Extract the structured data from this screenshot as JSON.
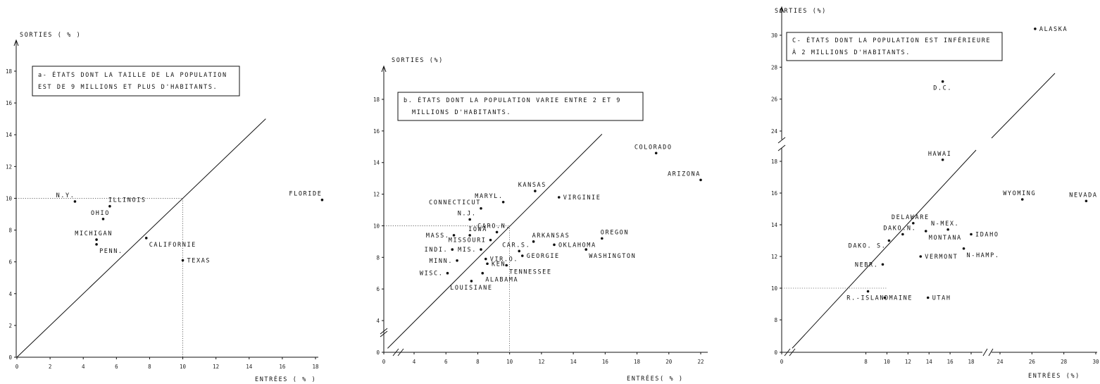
{
  "chart_data": [
    {
      "type": "scatter",
      "panel": "a",
      "title_lines": [
        "a- ÉTATS DONT LA TAILLE DE LA POPULATION",
        "EST DE 9 MILLIONS ET PLUS D'HABITANTS."
      ],
      "xlabel": "ENTRÉES ( % )",
      "ylabel": "SORTIES ( % )",
      "xlim": [
        0,
        18.5
      ],
      "ylim": [
        0,
        19
      ],
      "xticks": [
        0,
        2,
        4,
        6,
        8,
        10,
        12,
        14,
        16,
        18
      ],
      "yticks": [
        0,
        2,
        4,
        6,
        8,
        10,
        12,
        14,
        16,
        18
      ],
      "ytick_labels": [
        "0",
        "2",
        "4",
        "6",
        "8",
        "10",
        "12",
        "14",
        "16",
        "18"
      ],
      "reference_line": {
        "from": [
          0,
          0
        ],
        "to": [
          15,
          15
        ]
      },
      "guides": [
        {
          "x": 10,
          "y": 10
        }
      ],
      "points": [
        {
          "label": "N.Y.",
          "x": 3.5,
          "y": 9.8,
          "anchor": "nw"
        },
        {
          "label": "ILLINOIS",
          "x": 5.6,
          "y": 9.5,
          "anchor": "ne"
        },
        {
          "label": "OHIO",
          "x": 5.2,
          "y": 8.7,
          "anchor": "n"
        },
        {
          "label": "MICHIGAN",
          "x": 4.8,
          "y": 7.4,
          "anchor": "n"
        },
        {
          "label": "PENN.",
          "x": 4.8,
          "y": 7.1,
          "anchor": "se"
        },
        {
          "label": "CALIFORNIE",
          "x": 7.8,
          "y": 7.5,
          "anchor": "se"
        },
        {
          "label": "TEXAS",
          "x": 10.0,
          "y": 6.1,
          "anchor": "e"
        },
        {
          "label": "FLORIDE",
          "x": 18.4,
          "y": 9.9,
          "anchor": "nw"
        }
      ]
    },
    {
      "type": "scatter",
      "panel": "b",
      "title_lines": [
        "b. ÉTATS DONT LA POPULATION VARIE ENTRE 2 ET 9",
        "MILLIONS D'HABITANTS."
      ],
      "xlabel": "ENTRÉES( % )",
      "ylabel": "SORTIES (%)",
      "xlim": [
        0,
        22.5
      ],
      "ylim": [
        0,
        20
      ],
      "xticks": [
        0,
        4,
        6,
        8,
        10,
        12,
        14,
        16,
        18,
        20,
        22
      ],
      "xtick_labels": [
        "0",
        "4",
        "6",
        "8",
        "10",
        "12",
        "14",
        "16",
        "18",
        "20",
        "22"
      ],
      "yticks": [
        0,
        4,
        6,
        8,
        10,
        12,
        14,
        16,
        18
      ],
      "ytick_labels": [
        "0",
        "4",
        "6",
        "8",
        "10",
        "12",
        "14",
        "16",
        "18"
      ],
      "axis_break": true,
      "reference_line": {
        "from": [
          0.5,
          0.5
        ],
        "to": [
          15.8,
          15.8
        ]
      },
      "guides": [
        {
          "x": 10,
          "y": 10
        }
      ],
      "points": [
        {
          "label": "COLORADO",
          "x": 19.2,
          "y": 14.6,
          "anchor": "n"
        },
        {
          "label": "ARIZONA",
          "x": 22.0,
          "y": 12.9,
          "anchor": "nw"
        },
        {
          "label": "KANSAS",
          "x": 11.6,
          "y": 12.2,
          "anchor": "n"
        },
        {
          "label": "VIRGINIE",
          "x": 13.1,
          "y": 11.8,
          "anchor": "e"
        },
        {
          "label": "MARYL.",
          "x": 9.6,
          "y": 11.5,
          "anchor": "nw"
        },
        {
          "label": "CONNECTICUT",
          "x": 8.2,
          "y": 11.1,
          "anchor": "nw"
        },
        {
          "label": "N.J.",
          "x": 7.5,
          "y": 10.4,
          "anchor": "n"
        },
        {
          "label": "CARO.N.",
          "x": 9.2,
          "y": 9.6,
          "anchor": "n"
        },
        {
          "label": "MASS.",
          "x": 6.5,
          "y": 9.4,
          "anchor": "w"
        },
        {
          "label": "IOWA",
          "x": 7.5,
          "y": 9.4,
          "anchor": "ne"
        },
        {
          "label": "MISSOURI",
          "x": 8.8,
          "y": 9.1,
          "anchor": "w"
        },
        {
          "label": "ARKANSAS",
          "x": 11.5,
          "y": 9.0,
          "anchor": "ne"
        },
        {
          "label": "OREGON",
          "x": 15.8,
          "y": 9.2,
          "anchor": "ne"
        },
        {
          "label": "OKLAHOMA",
          "x": 12.8,
          "y": 8.8,
          "anchor": "e"
        },
        {
          "label": "INDI.",
          "x": 6.4,
          "y": 8.5,
          "anchor": "w"
        },
        {
          "label": "MIS.",
          "x": 8.2,
          "y": 8.5,
          "anchor": "w"
        },
        {
          "label": "CAR.S.",
          "x": 10.6,
          "y": 8.4,
          "anchor": "n"
        },
        {
          "label": "WASHINGTON",
          "x": 14.8,
          "y": 8.5,
          "anchor": "se"
        },
        {
          "label": "GEORGIE",
          "x": 10.8,
          "y": 8.1,
          "anchor": "e"
        },
        {
          "label": "VIR.O.",
          "x": 8.5,
          "y": 7.9,
          "anchor": "e"
        },
        {
          "label": "MINN.",
          "x": 6.7,
          "y": 7.8,
          "anchor": "w"
        },
        {
          "label": "KEN.",
          "x": 8.6,
          "y": 7.6,
          "anchor": "e"
        },
        {
          "label": "TENNESSEE",
          "x": 9.8,
          "y": 7.5,
          "anchor": "se"
        },
        {
          "label": "WISC.",
          "x": 6.1,
          "y": 7.0,
          "anchor": "w"
        },
        {
          "label": "ALABAMA",
          "x": 8.3,
          "y": 7.0,
          "anchor": "se"
        },
        {
          "label": "LOUISIANE",
          "x": 7.6,
          "y": 6.5,
          "anchor": "s"
        }
      ]
    },
    {
      "type": "scatter",
      "panel": "c",
      "title_lines": [
        "C- ÉTATS DONT LA POPULATION EST INFÉRIEURE",
        "À 2 MILLIONS D'HABITANTS."
      ],
      "xlabel": "ENTRÉES (%)",
      "ylabel": "SORTIES (%)",
      "xlim": [
        0,
        30
      ],
      "ylim": [
        0,
        31
      ],
      "xticks": [
        0,
        8,
        10,
        12,
        14,
        16,
        18,
        24,
        26,
        28,
        30
      ],
      "xtick_labels": [
        "0",
        "8",
        "10",
        "12",
        "14",
        "16",
        "18",
        "24",
        "26",
        "28",
        "30"
      ],
      "yticks": [
        0,
        8,
        10,
        12,
        14,
        16,
        18,
        24,
        26,
        28,
        30
      ],
      "ytick_labels": [
        "0",
        "8",
        "10",
        "12",
        "14",
        "16",
        "18",
        "24",
        "26",
        "28",
        "30"
      ],
      "axis_breaks": {
        "x": [
          19,
          23
        ],
        "y": [
          19,
          23
        ]
      },
      "reference_line": {
        "from": [
          1,
          1
        ],
        "to": [
          29,
          29
        ]
      },
      "guides": [
        {
          "x": 10,
          "y": 10
        }
      ],
      "points": [
        {
          "label": "ALASKA",
          "x": 26.2,
          "y": 30.4,
          "anchor": "e"
        },
        {
          "label": "D.C.",
          "x": 15.3,
          "y": 27.1,
          "anchor": "s"
        },
        {
          "label": "HAWAI",
          "x": 15.3,
          "y": 18.1,
          "anchor": "n"
        },
        {
          "label": "WYOMING",
          "x": 25.4,
          "y": 15.6,
          "anchor": "n"
        },
        {
          "label": "NEVADA",
          "x": 29.4,
          "y": 15.5,
          "anchor": "n"
        },
        {
          "label": "DELAWARE",
          "x": 12.5,
          "y": 14.1,
          "anchor": "n"
        },
        {
          "label": "DAKO.N.",
          "x": 11.5,
          "y": 13.4,
          "anchor": "n"
        },
        {
          "label": "MONTANA",
          "x": 13.7,
          "y": 13.6,
          "anchor": "se"
        },
        {
          "label": "N-MEX.",
          "x": 15.8,
          "y": 13.7,
          "anchor": "n"
        },
        {
          "label": "IDAHO",
          "x": 18.0,
          "y": 13.4,
          "anchor": "e"
        },
        {
          "label": "DAKO. S.",
          "x": 10.2,
          "y": 13.0,
          "anchor": "sw"
        },
        {
          "label": "N-HAMP.",
          "x": 17.3,
          "y": 12.5,
          "anchor": "se"
        },
        {
          "label": "VERMONT",
          "x": 13.2,
          "y": 12.0,
          "anchor": "e"
        },
        {
          "label": "NEBR.",
          "x": 9.6,
          "y": 11.5,
          "anchor": "w"
        },
        {
          "label": "R.-ISLAND",
          "x": 8.2,
          "y": 9.8,
          "anchor": "s"
        },
        {
          "label": "MAINE",
          "x": 9.8,
          "y": 9.4,
          "anchor": "e"
        },
        {
          "label": "UTAH",
          "x": 13.9,
          "y": 9.4,
          "anchor": "e"
        }
      ]
    }
  ]
}
